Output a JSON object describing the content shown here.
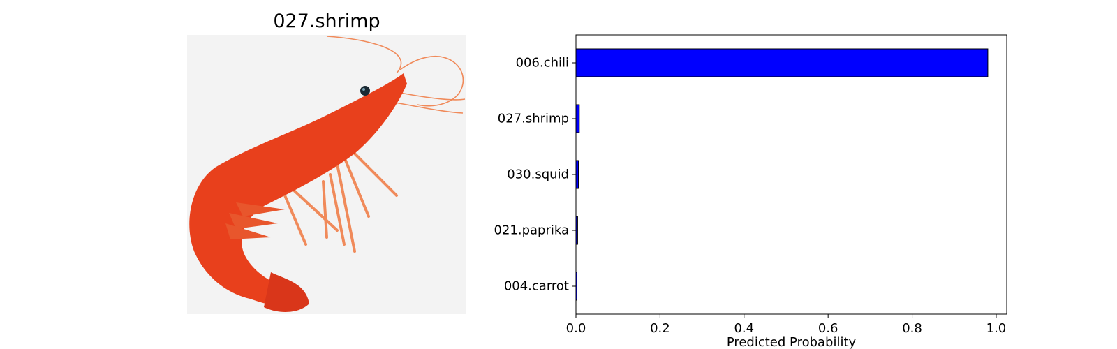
{
  "image_title": "027.shrimp",
  "colors": {
    "bar_fill": "#0000ff",
    "bar_edge": "#000000",
    "photo_background": "#f3f3f3",
    "shrimp_body": "#e8401c",
    "shrimp_legs": "#f08a5a"
  },
  "chart_data": {
    "type": "bar",
    "orientation": "horizontal",
    "categories": [
      "006.chili",
      "027.shrimp",
      "030.squid",
      "021.paprika",
      "004.carrot"
    ],
    "values": [
      0.98,
      0.008,
      0.006,
      0.004,
      0.002
    ],
    "xlabel": "Predicted Probability",
    "ylabel": "",
    "xlim": [
      0.0,
      1.025
    ],
    "x_ticks": [
      0.0,
      0.2,
      0.4,
      0.6,
      0.8,
      1.0
    ],
    "x_tick_labels": [
      "0.0",
      "0.2",
      "0.4",
      "0.6",
      "0.8",
      "1.0"
    ],
    "grid": false
  }
}
